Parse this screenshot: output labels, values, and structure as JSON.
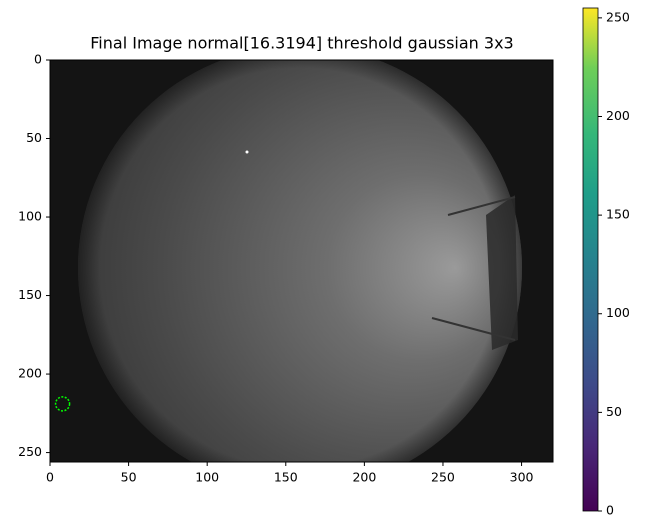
{
  "chart_data": {
    "type": "image",
    "title": "Final Image normal[16.3194] threshold gaussian 3x3",
    "xlim": [
      0,
      320
    ],
    "xticks": [
      0,
      50,
      100,
      150,
      200,
      250,
      300
    ],
    "ylim": [
      256,
      0
    ],
    "yticks": [
      0,
      50,
      100,
      150,
      200,
      250
    ],
    "colormap": "viridis",
    "clim": [
      0,
      255
    ],
    "cticks": [
      0,
      50,
      100,
      150,
      200,
      250
    ],
    "markers": [
      {
        "x": 8,
        "y": 219,
        "color": "#00ff00"
      }
    ]
  }
}
